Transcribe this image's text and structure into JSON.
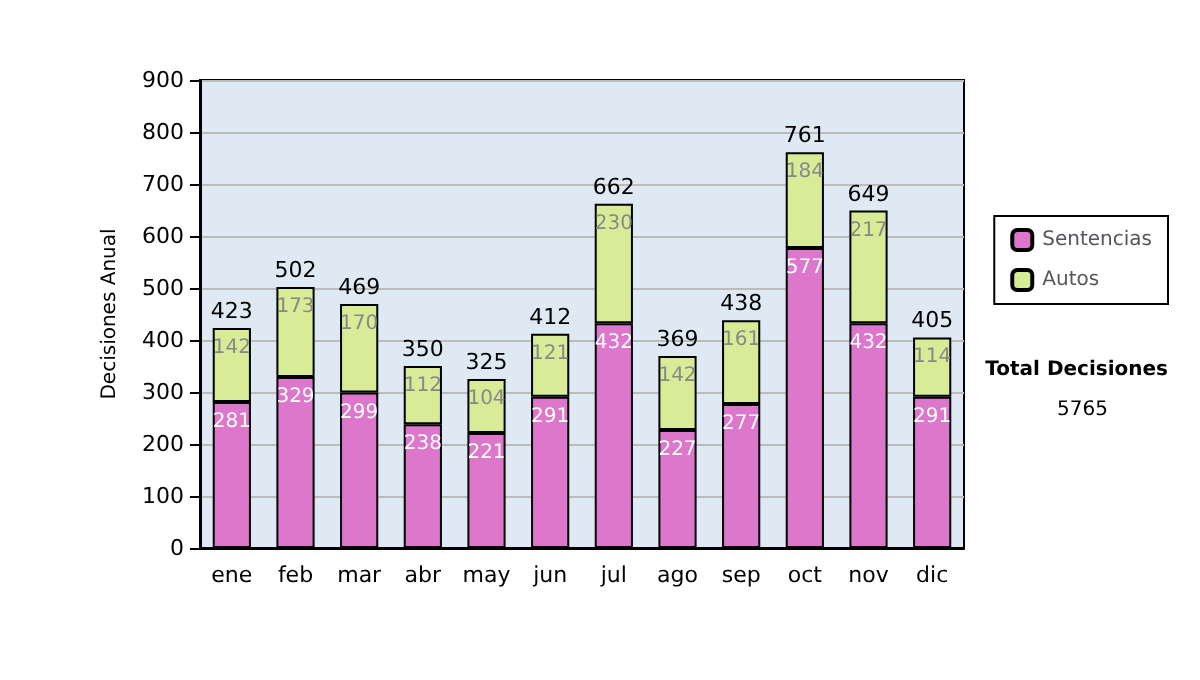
{
  "chart_data": {
    "type": "bar",
    "stacked": true,
    "ylabel": "Decisiones Anual",
    "categories": [
      "ene",
      "feb",
      "mar",
      "abr",
      "may",
      "jun",
      "jul",
      "ago",
      "sep",
      "oct",
      "nov",
      "dic"
    ],
    "series": [
      {
        "name": "Sentencias",
        "color": "#dd77cc",
        "values": [
          281,
          329,
          299,
          238,
          221,
          291,
          432,
          227,
          277,
          577,
          432,
          291
        ]
      },
      {
        "name": "Autos",
        "color": "#d8ec98",
        "values": [
          142,
          173,
          170,
          112,
          104,
          121,
          230,
          142,
          161,
          184,
          217,
          114
        ]
      }
    ],
    "totals": [
      "423",
      "502",
      "469",
      "350",
      "325",
      "412",
      "662",
      "369",
      "438",
      "761",
      "649",
      "405"
    ],
    "data_labels": true,
    "ylim": [
      0,
      900
    ],
    "yticks": [
      0,
      100,
      200,
      300,
      400,
      500,
      600,
      700,
      800,
      900
    ],
    "grid": "y",
    "legend": "right",
    "annotations": [
      "Total Decisiones",
      "5765"
    ]
  }
}
